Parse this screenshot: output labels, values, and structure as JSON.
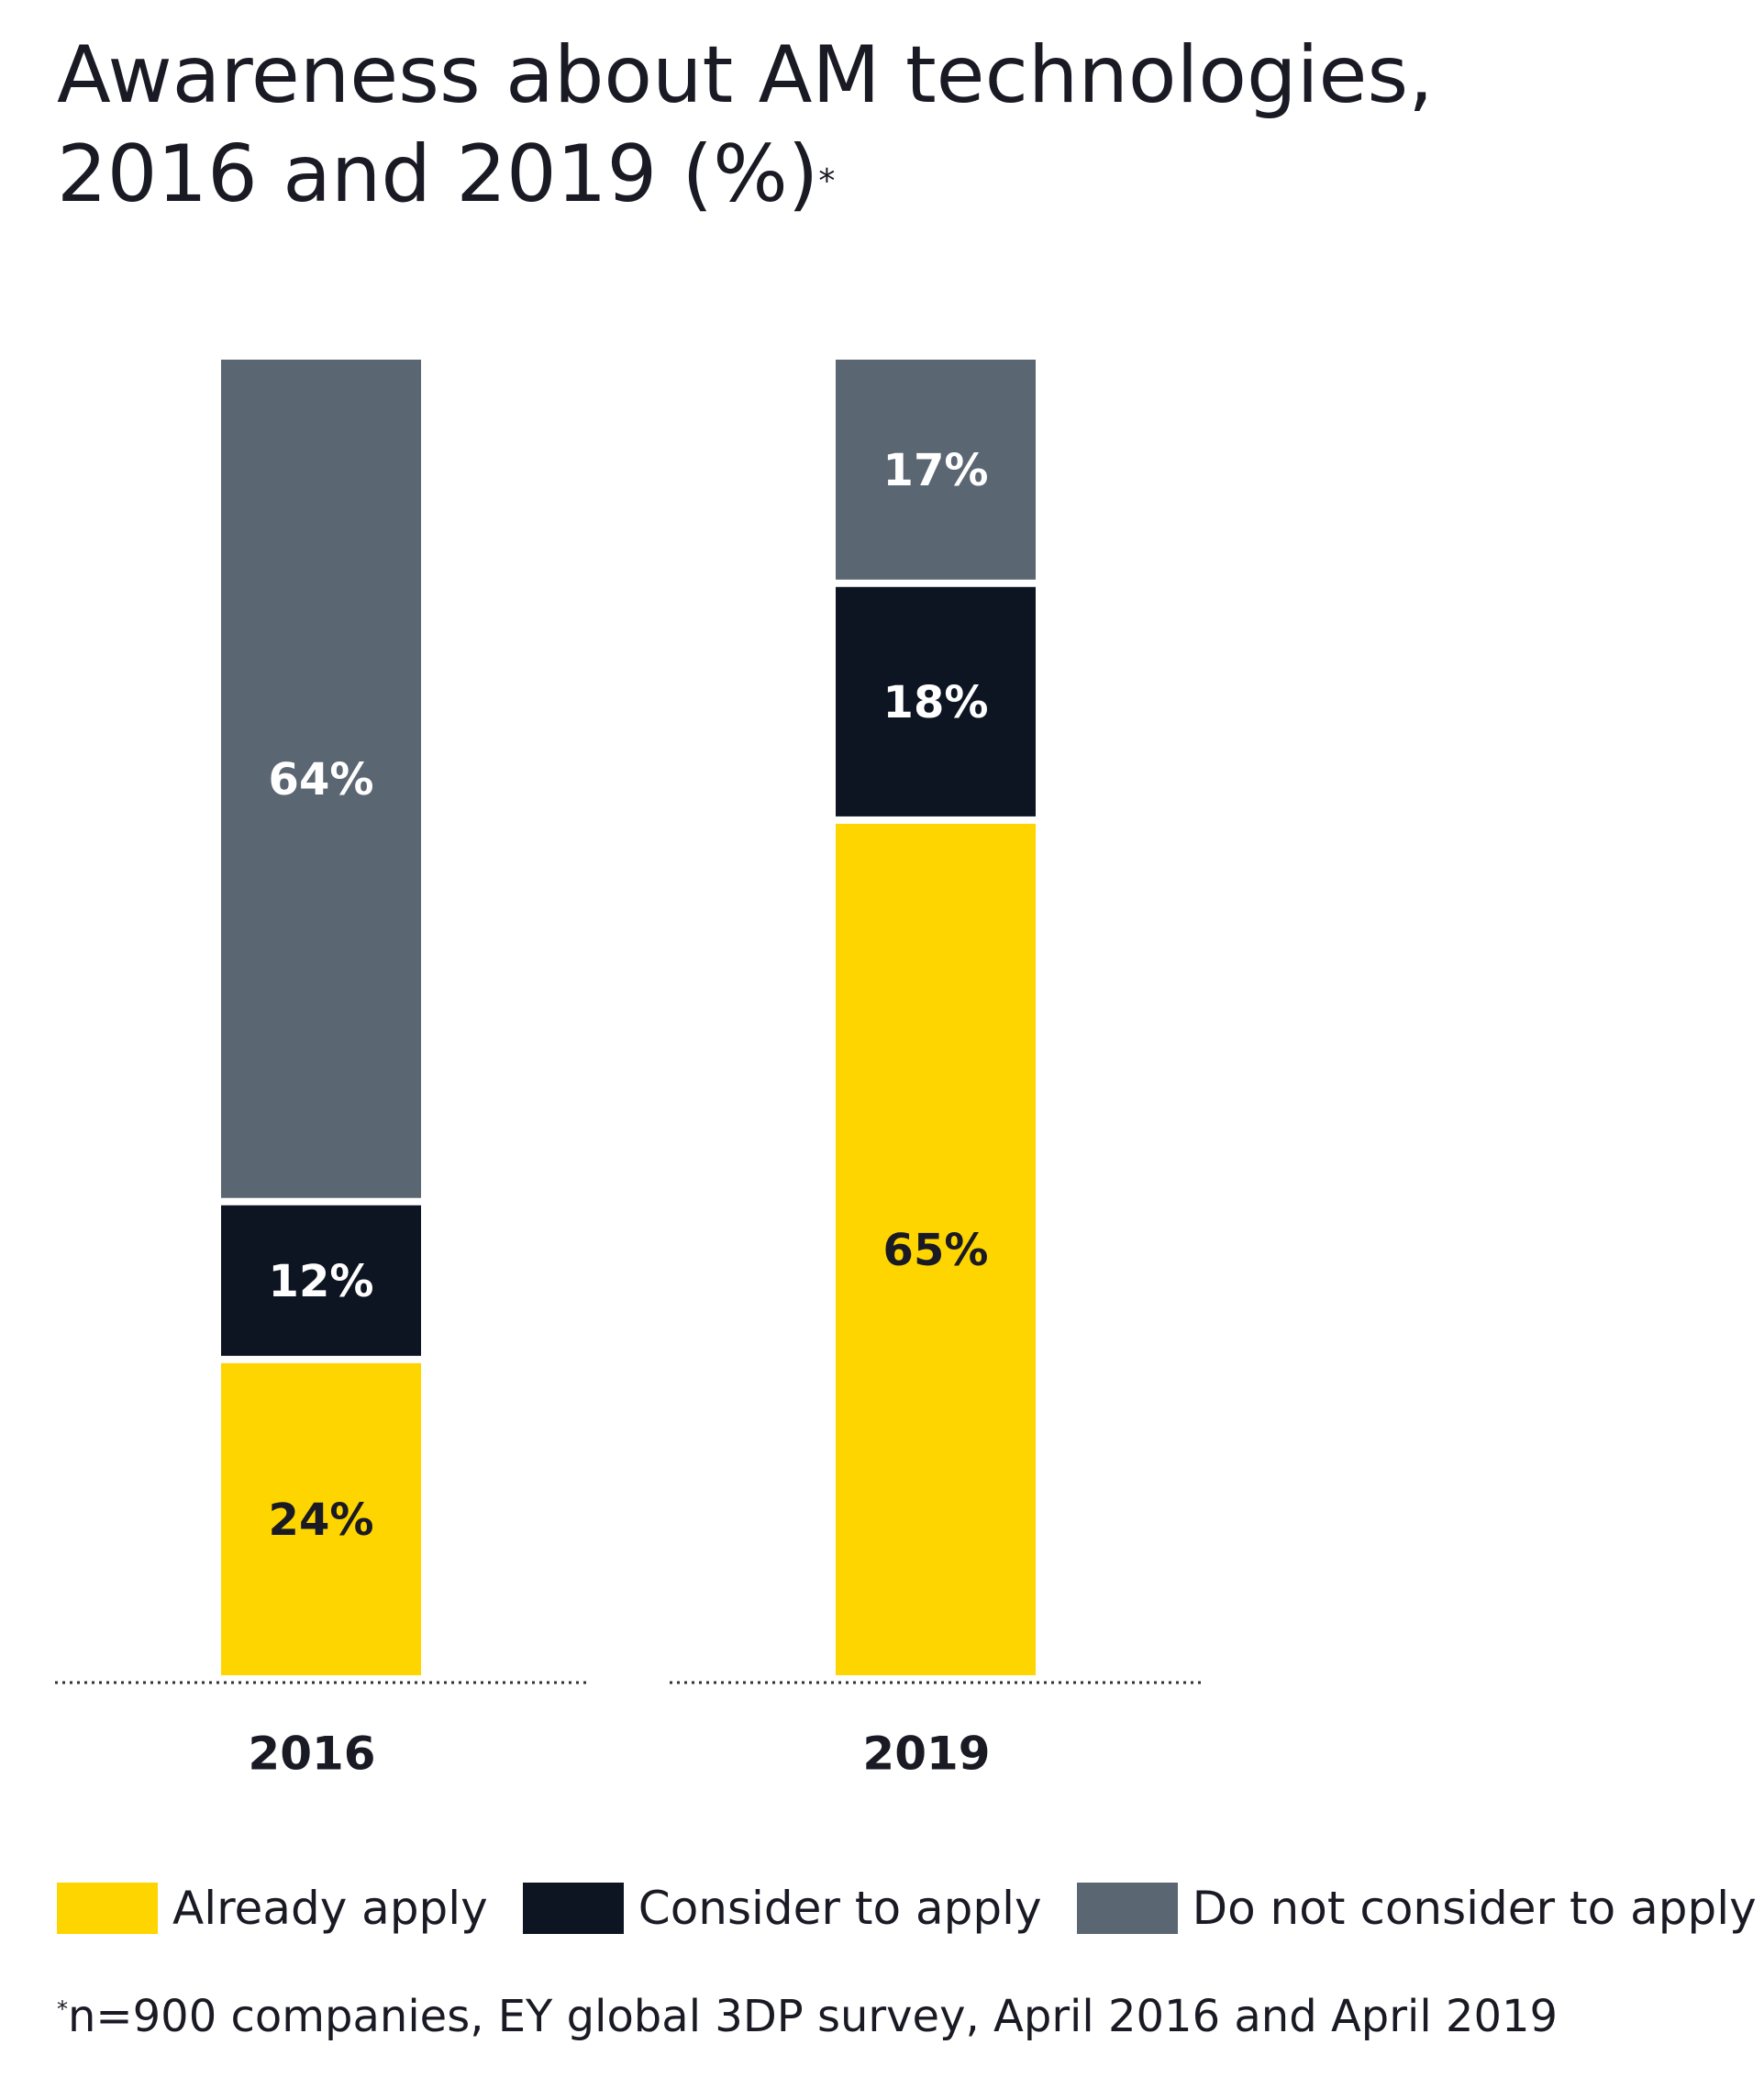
{
  "title": {
    "line1": "Awareness about AM technologies,",
    "line2": "2016 and 2019 (%)",
    "marker": "*"
  },
  "colors": {
    "already_apply": "#FFD500",
    "consider_to_apply": "#0E1522",
    "do_not_consider": "#5B6673",
    "baseline": "#333333",
    "label_light": "#FFFFFF",
    "label_dark": "#1A1A24"
  },
  "chart_data": {
    "type": "bar",
    "stacked": true,
    "title": "Awareness about AM technologies, 2016 and 2019 (%)",
    "categories": [
      "2016",
      "2019"
    ],
    "series": [
      {
        "name": "Already apply",
        "values": [
          24,
          65
        ],
        "color_key": "already_apply"
      },
      {
        "name": "Consider to apply",
        "values": [
          12,
          18
        ],
        "color_key": "consider_to_apply"
      },
      {
        "name": "Do not consider to apply",
        "values": [
          64,
          17
        ],
        "color_key": "do_not_consider"
      }
    ],
    "data_labels": [
      [
        "24%",
        "65%"
      ],
      [
        "12%",
        "18%"
      ],
      [
        "64%",
        "17%"
      ]
    ],
    "ylim": [
      0,
      100
    ],
    "xlabel": "",
    "ylabel": "",
    "grid": false,
    "legend_position": "bottom"
  },
  "legend": [
    {
      "label": "Already apply",
      "color_key": "already_apply"
    },
    {
      "label": "Consider to apply",
      "color_key": "consider_to_apply"
    },
    {
      "label": "Do not consider to apply",
      "color_key": "do_not_consider"
    }
  ],
  "footnote": {
    "marker": "*",
    "text": "n=900 companies, EY global 3DP survey, April 2016 and April 2019"
  }
}
